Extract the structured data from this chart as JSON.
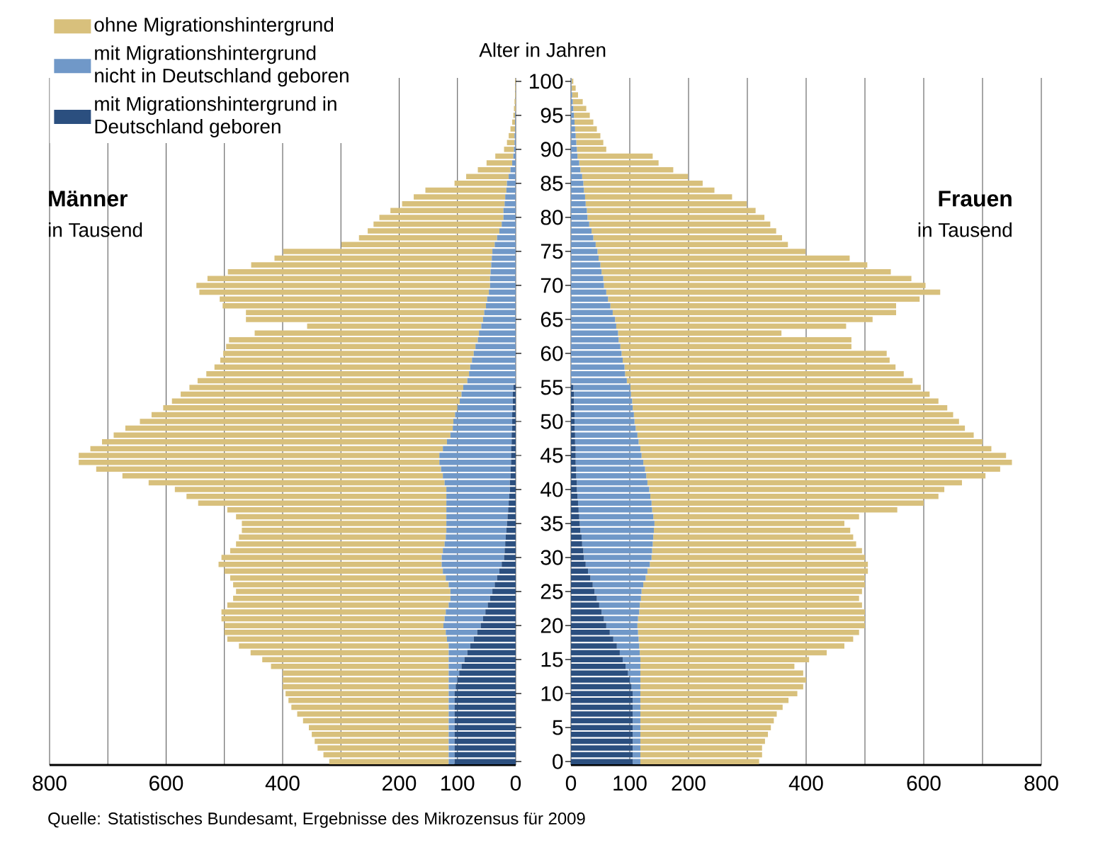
{
  "chart_data": [
    {
      "type": "bar",
      "orientation": "horizontal",
      "stacked": true,
      "title": "Männer",
      "subtitle": "in Tausend",
      "categories": [
        "100",
        null,
        null,
        null,
        null,
        "95",
        null,
        null,
        null,
        null,
        "90",
        null,
        null,
        null,
        null,
        "85",
        null,
        null,
        null,
        null,
        "80",
        null,
        null,
        null,
        null,
        "75",
        null,
        null,
        null,
        null,
        "70",
        null,
        null,
        null,
        null,
        "65",
        null,
        null,
        null,
        null,
        "60",
        null,
        null,
        null,
        null,
        "55",
        null,
        null,
        null,
        null,
        "50",
        null,
        null,
        null,
        null,
        "45",
        null,
        null,
        null,
        null,
        "40",
        null,
        null,
        null,
        null,
        "35",
        null,
        null,
        null,
        null,
        "30",
        null,
        null,
        null,
        null,
        "25",
        null,
        null,
        null,
        null,
        "20",
        null,
        null,
        null,
        null,
        "15",
        null,
        null,
        null,
        null,
        "10",
        null,
        null,
        null,
        null,
        "5",
        null,
        null,
        null,
        null,
        "0"
      ],
      "series": [
        {
          "name": "mit Migrationshintergrund in Deutschland geboren",
          "color": "#2b4f7f",
          "values": [
            0,
            0,
            0,
            0,
            0,
            0,
            0,
            0,
            0,
            0,
            0,
            0,
            0,
            0,
            0,
            0,
            0,
            0,
            0,
            0,
            0,
            0,
            0,
            0,
            0,
            0,
            0,
            0,
            0,
            0,
            0,
            0,
            0,
            0,
            0,
            0,
            0,
            0,
            0,
            0,
            0,
            0,
            0,
            0,
            0,
            4,
            5,
            5,
            5,
            6,
            6,
            6,
            7,
            7,
            8,
            8,
            8,
            9,
            9,
            10,
            10,
            11,
            12,
            13,
            14,
            15,
            16,
            17,
            18,
            19,
            20,
            24,
            28,
            32,
            36,
            40,
            44,
            48,
            52,
            56,
            60,
            66,
            72,
            78,
            83,
            88,
            93,
            97,
            100,
            103,
            105,
            105,
            105,
            105,
            105,
            105,
            105,
            105,
            105,
            105,
            105
          ]
        },
        {
          "name": "mit Migrationshintergrund nicht in Deutschland geboren",
          "color": "#7098c8",
          "values": [
            0,
            0,
            0,
            0,
            0,
            1,
            1,
            1,
            2,
            2,
            3,
            4,
            6,
            9,
            12,
            15,
            16,
            18,
            19,
            21,
            21,
            24,
            28,
            32,
            36,
            40,
            41,
            42,
            43,
            44,
            44,
            46,
            49,
            51,
            54,
            56,
            59,
            63,
            65,
            69,
            72,
            75,
            78,
            80,
            83,
            86,
            88,
            91,
            95,
            98,
            101,
            102,
            105,
            111,
            117,
            123,
            123,
            119,
            116,
            112,
            109,
            108,
            107,
            106,
            105,
            104,
            103,
            103,
            104,
            106,
            107,
            103,
            97,
            88,
            79,
            72,
            68,
            67,
            68,
            66,
            64,
            54,
            46,
            37,
            32,
            27,
            22,
            18,
            15,
            12,
            10,
            10,
            10,
            10,
            10,
            10,
            10,
            10,
            10,
            10,
            10
          ]
        },
        {
          "name": "ohne Migrationshintergrund",
          "color": "#d8c07c",
          "values": [
            1,
            1,
            1,
            2,
            3,
            3,
            5,
            8,
            10,
            13,
            17,
            31,
            44,
            56,
            73,
            90,
            139,
            157,
            176,
            194,
            213,
            220,
            226,
            237,
            263,
            359,
            373,
            412,
            451,
            485,
            504,
            497,
            459,
            452,
            409,
            407,
            299,
            385,
            427,
            428,
            430,
            432,
            439,
            451,
            463,
            470,
            482,
            494,
            505,
            521,
            538,
            562,
            578,
            592,
            605,
            619,
            619,
            592,
            550,
            508,
            466,
            446,
            426,
            376,
            361,
            351,
            351,
            355,
            358,
            365,
            378,
            383,
            375,
            370,
            370,
            368,
            373,
            380,
            385,
            383,
            376,
            380,
            377,
            360,
            340,
            320,
            305,
            285,
            285,
            285,
            280,
            275,
            270,
            260,
            250,
            240,
            235,
            230,
            225,
            215,
            205
          ]
        }
      ],
      "xlim": [
        800,
        0
      ],
      "xticks": [
        800,
        {
          "value": 700,
          "label": null
        },
        600,
        {
          "value": 500,
          "label": null
        },
        400,
        {
          "value": 300,
          "label": null
        },
        200,
        100,
        0
      ],
      "grid": "x",
      "legend": "top left",
      "tick_labels": "x",
      "annotations": [
        "Quelle: Statistisches Bundesamt, Ergebnisse des Mikrozensus für 2009"
      ]
    },
    {
      "type": "bar",
      "orientation": "horizontal",
      "stacked": true,
      "title": "Frauen",
      "subtitle": "in Tausend",
      "ylabel": "Alter in Jahren",
      "categories": [
        "100",
        null,
        null,
        null,
        null,
        "95",
        null,
        null,
        null,
        null,
        "90",
        null,
        null,
        null,
        null,
        "85",
        null,
        null,
        null,
        null,
        "80",
        null,
        null,
        null,
        null,
        "75",
        null,
        null,
        null,
        null,
        "70",
        null,
        null,
        null,
        null,
        "65",
        null,
        null,
        null,
        null,
        "60",
        null,
        null,
        null,
        null,
        "55",
        null,
        null,
        null,
        null,
        "50",
        null,
        null,
        null,
        null,
        "45",
        null,
        null,
        null,
        null,
        "40",
        null,
        null,
        null,
        null,
        "35",
        null,
        null,
        null,
        null,
        "30",
        null,
        null,
        null,
        null,
        "25",
        null,
        null,
        null,
        null,
        "20",
        null,
        null,
        null,
        null,
        "15",
        null,
        null,
        null,
        null,
        "10",
        null,
        null,
        null,
        null,
        "5",
        null,
        null,
        null,
        null,
        "0"
      ],
      "series": [
        {
          "color": "#2b4f7f",
          "values": [
            0,
            0,
            0,
            0,
            0,
            0,
            0,
            0,
            0,
            0,
            0,
            0,
            0,
            0,
            0,
            0,
            0,
            0,
            0,
            0,
            0,
            0,
            0,
            0,
            0,
            0,
            0,
            0,
            0,
            0,
            0,
            0,
            0,
            0,
            0,
            0,
            0,
            0,
            0,
            0,
            0,
            0,
            0,
            0,
            0,
            4,
            5,
            5,
            5,
            6,
            6,
            6,
            7,
            7,
            8,
            8,
            8,
            9,
            9,
            10,
            10,
            11,
            12,
            13,
            14,
            15,
            16,
            18,
            19,
            21,
            22,
            25,
            29,
            33,
            37,
            40,
            44,
            48,
            52,
            56,
            60,
            66,
            72,
            78,
            83,
            88,
            93,
            97,
            100,
            103,
            105,
            105,
            105,
            105,
            105,
            105,
            105,
            105,
            105,
            105,
            105
          ]
        },
        {
          "color": "#7098c8",
          "values": [
            1,
            1,
            2,
            3,
            4,
            5,
            6,
            7,
            8,
            9,
            10,
            11,
            14,
            16,
            19,
            21,
            22,
            24,
            25,
            27,
            28,
            31,
            35,
            38,
            42,
            45,
            47,
            50,
            52,
            55,
            56,
            60,
            63,
            67,
            71,
            75,
            77,
            80,
            81,
            84,
            86,
            88,
            91,
            92,
            95,
            97,
            97,
            99,
            100,
            101,
            102,
            104,
            106,
            108,
            110,
            112,
            115,
            117,
            119,
            120,
            123,
            124,
            125,
            125,
            126,
            127,
            125,
            122,
            120,
            117,
            115,
            109,
            101,
            94,
            86,
            80,
            75,
            69,
            64,
            58,
            53,
            48,
            43,
            38,
            34,
            30,
            25,
            21,
            18,
            15,
            13,
            13,
            13,
            13,
            13,
            13,
            13,
            13,
            13,
            13,
            13
          ]
        },
        {
          "color": "#d8c07c",
          "values": [
            3,
            7,
            10,
            17,
            22,
            27,
            32,
            37,
            42,
            46,
            50,
            128,
            135,
            158,
            180,
            203,
            222,
            250,
            274,
            287,
            301,
            308,
            314,
            321,
            327,
            354,
            427,
            454,
            492,
            524,
            547,
            568,
            530,
            486,
            482,
            438,
            391,
            278,
            396,
            393,
            451,
            454,
            461,
            474,
            486,
            494,
            508,
            521,
            535,
            543,
            552,
            560,
            572,
            585,
            597,
            620,
            627,
            604,
            577,
            535,
            502,
            490,
            463,
            417,
            350,
            323,
            334,
            340,
            346,
            357,
            363,
            371,
            375,
            373,
            377,
            375,
            371,
            378,
            384,
            386,
            387,
            376,
            365,
            349,
            318,
            287,
            262,
            277,
            282,
            277,
            267,
            252,
            242,
            232,
            227,
            222,
            217,
            212,
            207,
            207,
            202
          ]
        }
      ],
      "xlim": [
        0,
        800
      ],
      "xticks": [
        0,
        100,
        200,
        {
          "value": 300,
          "label": null
        },
        400,
        {
          "value": 500,
          "label": null
        },
        600,
        {
          "value": 700,
          "label": null
        },
        800
      ],
      "grid": "x"
    }
  ]
}
